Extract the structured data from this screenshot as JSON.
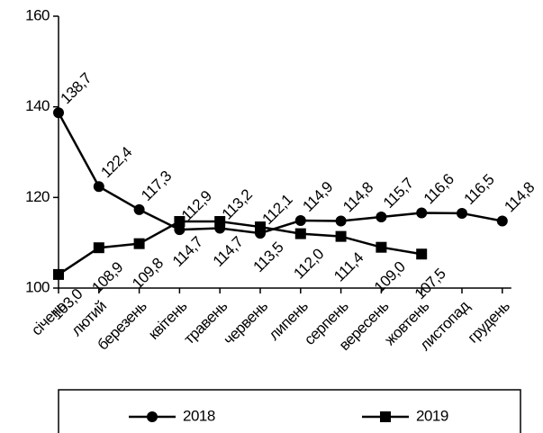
{
  "chart_data": {
    "type": "line",
    "categories": [
      "січень",
      "лютий",
      "березень",
      "квітень",
      "травень",
      "червень",
      "липень",
      "серпень",
      "вересень",
      "жовтень",
      "листопад",
      "грудень"
    ],
    "series": [
      {
        "name": "2018",
        "color": "#000000",
        "marker": "circle",
        "values": [
          138.7,
          122.4,
          117.3,
          112.9,
          113.2,
          112.1,
          114.9,
          114.8,
          115.7,
          116.6,
          116.5,
          114.8
        ],
        "value_labels": [
          "138,7",
          "122,4",
          "117,3",
          "112,9",
          "113,2",
          "112,1",
          "114,9",
          "114,8",
          "115,7",
          "116,6",
          "116,5",
          "114,8"
        ]
      },
      {
        "name": "2019",
        "color": "#000000",
        "marker": "square",
        "values": [
          103.0,
          108.9,
          109.8,
          114.7,
          114.7,
          113.5,
          112.0,
          111.4,
          109.0,
          107.5,
          null,
          null
        ],
        "value_labels": [
          "103,0",
          "108,9",
          "109,8",
          "114,7",
          "114,7",
          "113,5",
          "112,0",
          "111,4",
          "109,0",
          "107,5",
          null,
          null
        ]
      }
    ],
    "ylim": [
      100,
      160
    ],
    "yticks": [
      100,
      120,
      140,
      160
    ]
  }
}
